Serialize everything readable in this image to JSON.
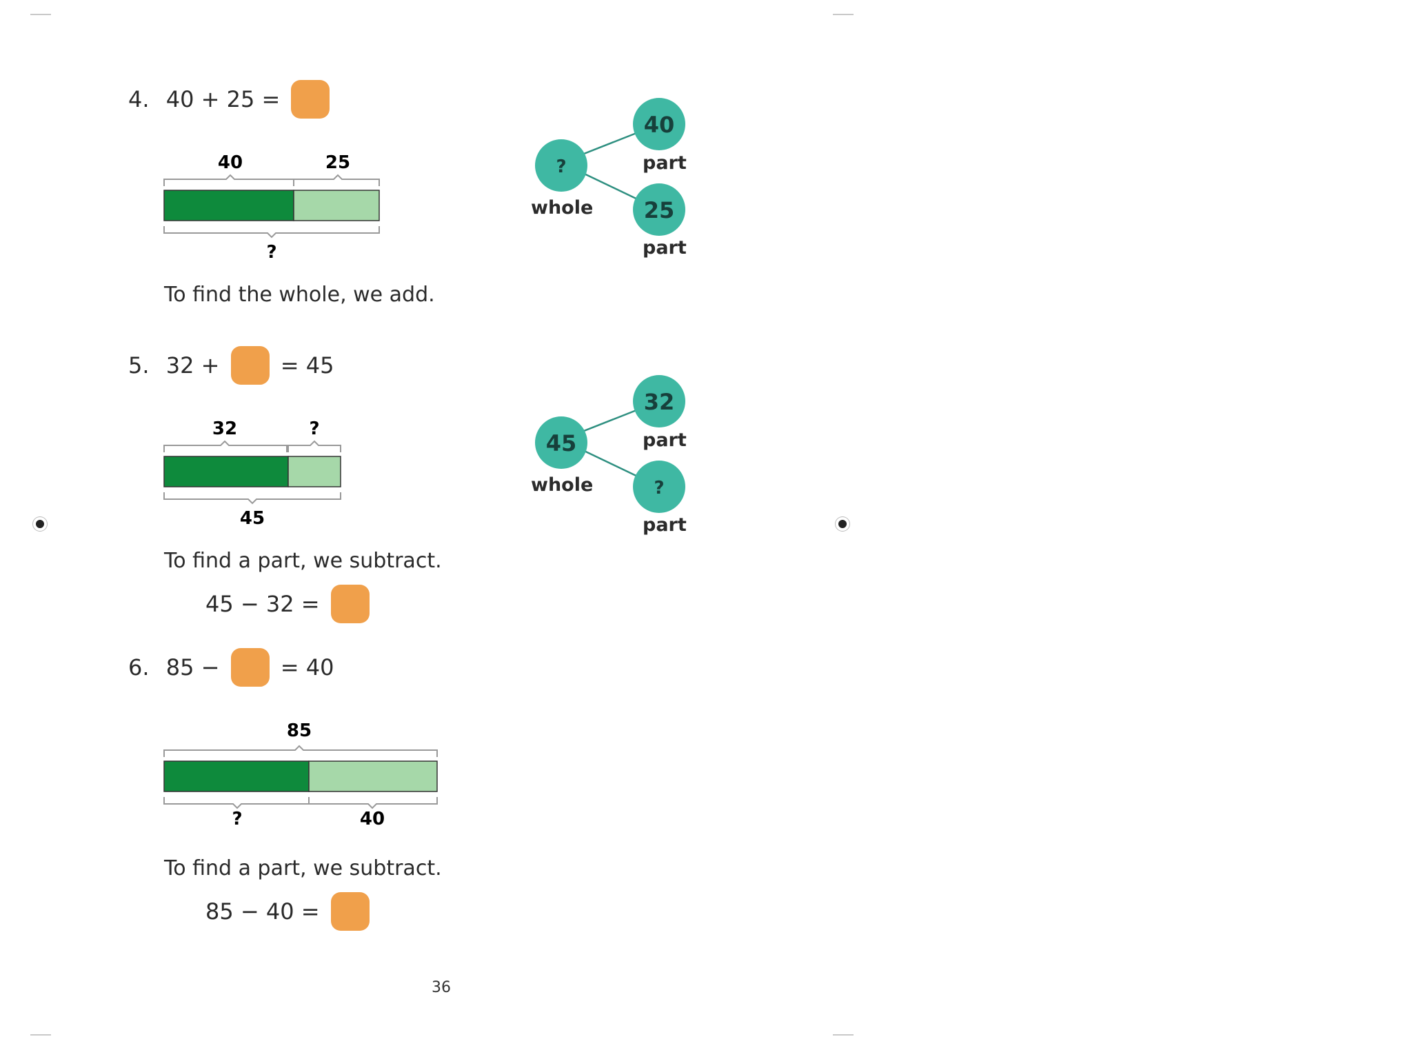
{
  "problems": [
    {
      "number": "4.",
      "equation": {
        "left": "40 + 25 =",
        "right": ""
      },
      "bar": {
        "top_labels": [
          "40",
          "25"
        ],
        "bottom_labels": [
          "?"
        ],
        "dark_part": 40,
        "light_part": 25
      },
      "sentence": "To find the whole, we add.",
      "bond": {
        "whole": "?",
        "whole_label": "whole",
        "parts": [
          "40",
          "25"
        ],
        "part_label": "part"
      }
    },
    {
      "number": "5.",
      "equation": {
        "left": "32 +",
        "right": "= 45"
      },
      "bar": {
        "top_labels": [
          "32",
          "?"
        ],
        "bottom_labels": [
          "45"
        ],
        "dark_part": 32,
        "light_part": 13
      },
      "sentence": "To find a part, we subtract.",
      "followup": "45 − 32 =",
      "bond": {
        "whole": "45",
        "whole_label": "whole",
        "parts": [
          "32",
          "?"
        ],
        "part_label": "part"
      }
    },
    {
      "number": "6.",
      "equation": {
        "left": "85 −",
        "right": "= 40"
      },
      "bar": {
        "top_labels": [
          "85"
        ],
        "bottom_labels": [
          "?",
          "40"
        ],
        "dark_part": 45,
        "light_part": 40
      },
      "sentence": "To find a part, we subtract.",
      "followup": "85 − 40 ="
    }
  ],
  "page_number": "36",
  "colors": {
    "answer_box": "#f0a04b",
    "bar_dark": "#0e8a3c",
    "bar_light": "#a6d8a9",
    "circle": "#3fb8a3"
  }
}
